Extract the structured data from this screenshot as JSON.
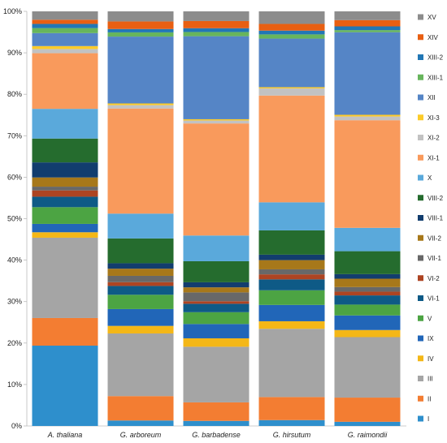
{
  "chart_data": {
    "type": "bar",
    "stacked": true,
    "percent": true,
    "categories": [
      "A. thaliana",
      "G. arboreum",
      "G. barbadense",
      "G. hirsutum",
      "G. raimondii"
    ],
    "ylim": [
      0,
      100
    ],
    "yticks": [
      "0%",
      "10%",
      "20%",
      "30%",
      "40%",
      "50%",
      "60%",
      "70%",
      "80%",
      "90%",
      "100%"
    ],
    "grid": false,
    "legend_position": "right",
    "series": [
      {
        "name": "I",
        "color": "#2e8fcc",
        "values": [
          19.2,
          1.3,
          1.2,
          1.4,
          1.0
        ]
      },
      {
        "name": "II",
        "color": "#f37d32",
        "values": [
          6.6,
          5.8,
          4.4,
          5.5,
          5.8
        ]
      },
      {
        "name": "III",
        "color": "#a5a5a5",
        "values": [
          19.2,
          14.9,
          13.2,
          16.3,
          14.5
        ]
      },
      {
        "name": "IV",
        "color": "#f4b717",
        "values": [
          1.3,
          1.8,
          2.0,
          1.8,
          1.7
        ]
      },
      {
        "name": "IX",
        "color": "#2166b8",
        "values": [
          2.0,
          4.0,
          3.4,
          3.9,
          3.5
        ]
      },
      {
        "name": "V",
        "color": "#4ca443",
        "values": [
          4.0,
          3.4,
          2.8,
          3.5,
          2.6
        ]
      },
      {
        "name": "VI-1",
        "color": "#0e5a86",
        "values": [
          2.5,
          2.1,
          2.0,
          2.6,
          2.2
        ]
      },
      {
        "name": "VI-2",
        "color": "#ad4422",
        "values": [
          1.5,
          0.9,
          0.6,
          1.2,
          0.9
        ]
      },
      {
        "name": "VII-1",
        "color": "#686868",
        "values": [
          0.9,
          1.5,
          2.1,
          1.2,
          1.1
        ]
      },
      {
        "name": "VII-2",
        "color": "#a7781a",
        "values": [
          2.2,
          1.7,
          1.2,
          2.2,
          2.0
        ]
      },
      {
        "name": "VIII-1",
        "color": "#123d6e",
        "values": [
          3.6,
          1.3,
          1.2,
          1.3,
          1.1
        ]
      },
      {
        "name": "VIII-2",
        "color": "#256c2e",
        "values": [
          5.7,
          5.9,
          5.0,
          5.8,
          5.5
        ]
      },
      {
        "name": "X",
        "color": "#5aa9db",
        "values": [
          7.1,
          5.9,
          6.1,
          6.7,
          5.6
        ]
      },
      {
        "name": "XI-1",
        "color": "#f99a5c",
        "values": [
          13.3,
          25.0,
          26.6,
          25.5,
          25.8
        ]
      },
      {
        "name": "XI-2",
        "color": "#c2c2c2",
        "values": [
          1.0,
          0.8,
          0.7,
          1.7,
          0.9
        ]
      },
      {
        "name": "XI-3",
        "color": "#fccb2a",
        "values": [
          0.7,
          0.4,
          0.3,
          0.3,
          0.4
        ]
      },
      {
        "name": "XII",
        "color": "#5585c6",
        "values": [
          3.1,
          15.9,
          19.7,
          11.6,
          19.8
        ]
      },
      {
        "name": "XIII-1",
        "color": "#67b55c",
        "values": [
          1.2,
          1.0,
          1.0,
          1.0,
          0.5
        ]
      },
      {
        "name": "XIII-2",
        "color": "#2277b5",
        "values": [
          1.0,
          0.8,
          0.9,
          0.9,
          0.9
        ]
      },
      {
        "name": "XIV",
        "color": "#e85f12",
        "values": [
          1.0,
          1.8,
          1.7,
          1.6,
          1.5
        ]
      },
      {
        "name": "XV",
        "color": "#8c8c8c",
        "values": [
          2.0,
          2.4,
          2.3,
          3.0,
          2.1
        ]
      }
    ]
  }
}
